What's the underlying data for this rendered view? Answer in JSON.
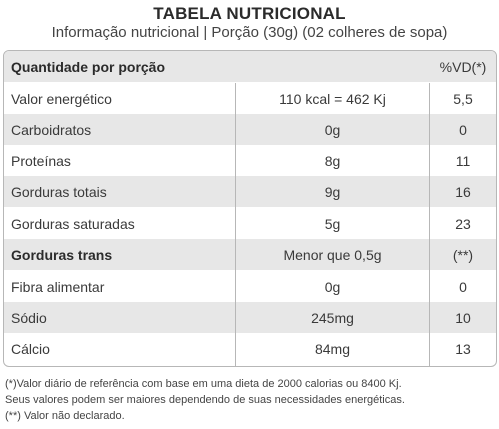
{
  "header": {
    "title": "TABELA NUTRICIONAL",
    "subtitle": "Informação nutricional | Porção (30g) (02 colheres de sopa)"
  },
  "table": {
    "header": {
      "name": "Quantidade por porção",
      "vd": "%VD(*)"
    },
    "rows": [
      {
        "name": "Valor energético",
        "qty": "110 kcal = 462 Kj",
        "vd": "5,5"
      },
      {
        "name": "Carboidratos",
        "qty": "0g",
        "vd": "0"
      },
      {
        "name": "Proteínas",
        "qty": "8g",
        "vd": "11"
      },
      {
        "name": "Gorduras totais",
        "qty": "9g",
        "vd": "16"
      },
      {
        "name": "Gorduras saturadas",
        "qty": "5g",
        "vd": "23"
      },
      {
        "name": "Gorduras trans",
        "qty": "Menor que 0,5g",
        "vd": "(**)"
      },
      {
        "name": "Fibra alimentar",
        "qty": "0g",
        "vd": "0"
      },
      {
        "name": "Sódio",
        "qty": "245mg",
        "vd": "10"
      },
      {
        "name": "Cálcio",
        "qty": "84mg",
        "vd": "13"
      }
    ]
  },
  "footnotes": [
    "(*)Valor diário de referência com base em uma dieta de 2000 calorias ou 8400 Kj.",
    "Seus valores podem ser maiores dependendo de suas necessidades energéticas.",
    "(**) Valor não declarado."
  ]
}
